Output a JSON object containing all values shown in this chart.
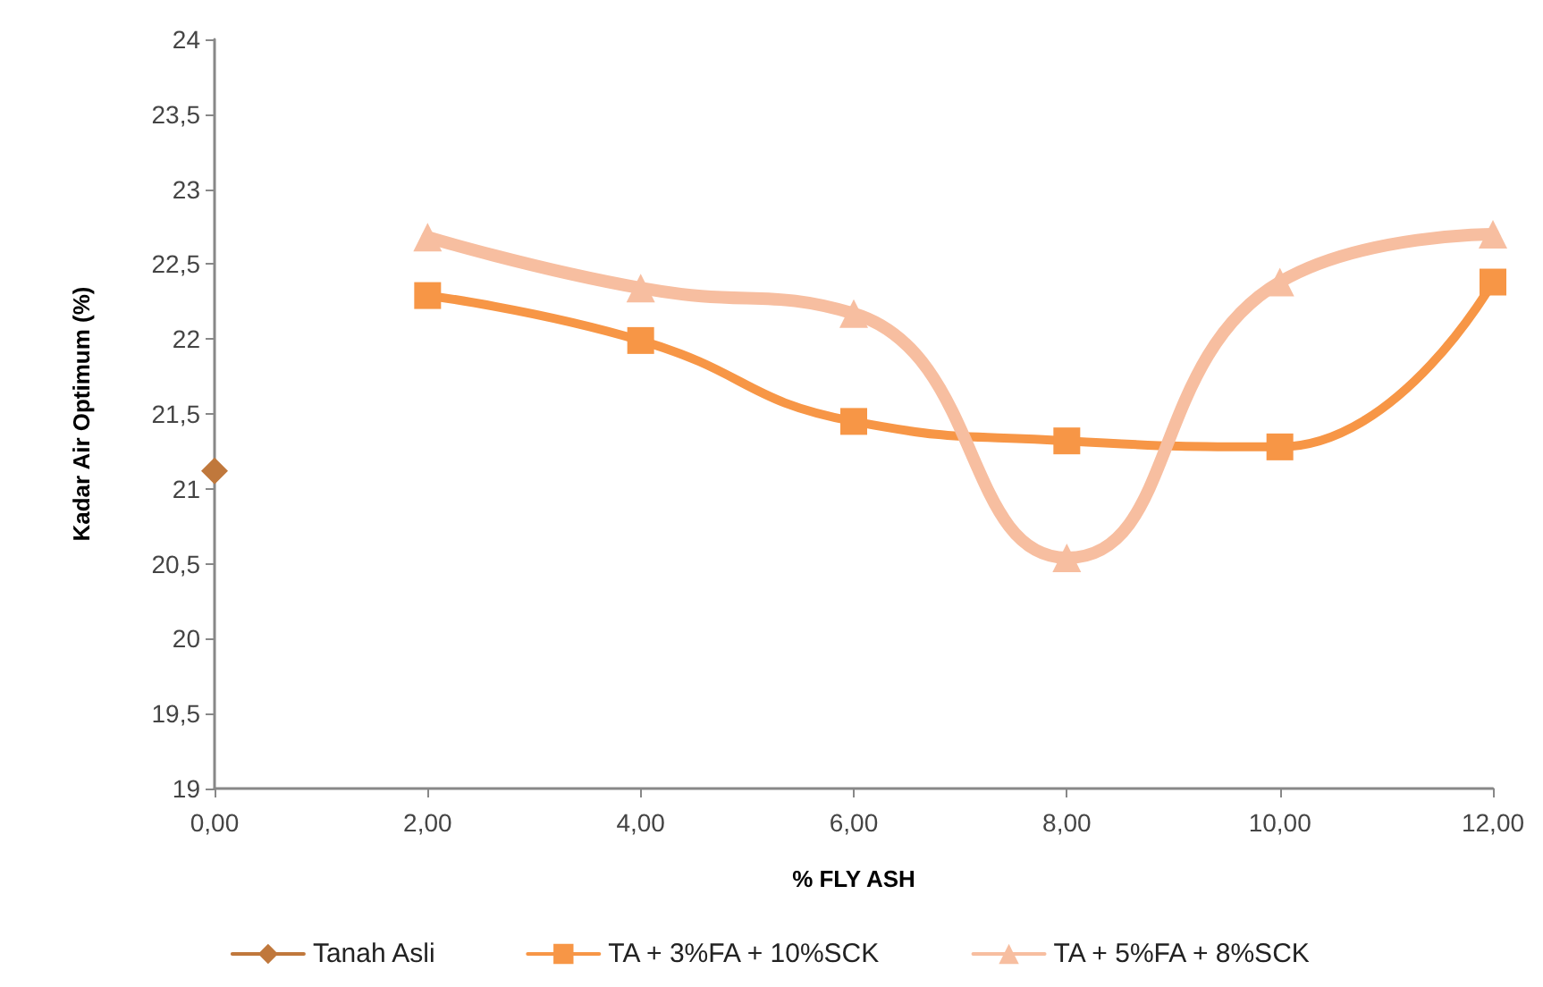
{
  "chart_data": {
    "type": "line",
    "xlabel": "% FLY ASH",
    "ylabel": "Kadar Air Optimum (%)",
    "xlim": [
      0,
      12
    ],
    "xticks": [
      {
        "value": 0,
        "label": "0,00"
      },
      {
        "value": 2,
        "label": "2,00"
      },
      {
        "value": 4,
        "label": "4,00"
      },
      {
        "value": 6,
        "label": "6,00"
      },
      {
        "value": 8,
        "label": "8,00"
      },
      {
        "value": 10,
        "label": "10,00"
      },
      {
        "value": 12,
        "label": "12,00"
      }
    ],
    "ylim": [
      19,
      24
    ],
    "yticks": [
      19,
      {
        "value": 19.5,
        "label": "19,5"
      },
      20,
      {
        "value": 20.5,
        "label": "20,5"
      },
      21,
      {
        "value": 21.5,
        "label": "21,5"
      },
      22,
      {
        "value": 22.5,
        "label": "22,5"
      },
      23,
      {
        "value": 23.5,
        "label": "23,5"
      },
      24
    ],
    "grid": false,
    "legend": "bottom",
    "series": [
      {
        "name": "Tanah Asli",
        "color": "#c0783c",
        "marker": "diamond",
        "x": [
          0
        ],
        "values": [
          21.12
        ]
      },
      {
        "name": "TA + 3%FA + 10%SCK",
        "color": "#f79646",
        "marker": "square",
        "x": [
          2,
          4,
          6,
          8,
          10,
          12
        ],
        "values": [
          22.29,
          21.99,
          21.45,
          21.32,
          21.28,
          22.38
        ]
      },
      {
        "name": "TA + 5%FA + 8%SCK",
        "color": "#f7bea0",
        "marker": "triangle",
        "x": [
          2,
          4,
          6,
          8,
          10,
          12
        ],
        "values": [
          22.68,
          22.34,
          22.17,
          20.54,
          22.38,
          22.7
        ]
      }
    ]
  }
}
